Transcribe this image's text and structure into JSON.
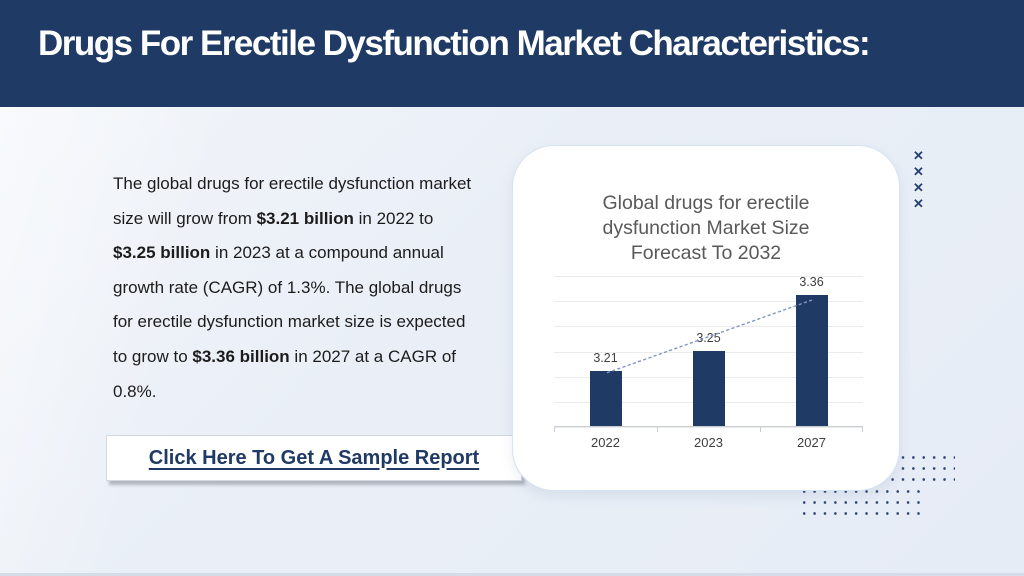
{
  "header": {
    "title": "Drugs For Erectile Dysfunction Market Characteristics:"
  },
  "intro": {
    "segments": [
      {
        "text": "The global drugs for erectile dysfunction market size will grow from ",
        "bold": false
      },
      {
        "text": "$3.21 billion",
        "bold": true
      },
      {
        "text": " in 2022 to ",
        "bold": false
      },
      {
        "text": "$3.25 billion",
        "bold": true
      },
      {
        "text": " in 2023 at a compound annual growth rate (CAGR) of 1.3%. The global drugs for erectile dysfunction market size is expected to grow to ",
        "bold": false
      },
      {
        "text": "$3.36 billion",
        "bold": true
      },
      {
        "text": " in 2027 at a CAGR of 0.8%.",
        "bold": false
      }
    ]
  },
  "cta": {
    "label": "Click Here To Get A Sample Report"
  },
  "chart_data": {
    "type": "bar",
    "title": "Global drugs for erectile dysfunction Market Size Forecast To 2032",
    "title_lines": [
      "Global drugs for erectile",
      "dysfunction Market Size",
      "Forecast To 2032"
    ],
    "categories": [
      "2022",
      "2023",
      "2027"
    ],
    "values": [
      3.21,
      3.25,
      3.36
    ],
    "value_labels": [
      "3.21",
      "3.25",
      "3.36"
    ],
    "ylim": [
      3.1,
      3.4
    ],
    "grid": true,
    "gridline_count": 7,
    "bar_color": "#1f3a64",
    "trendline": {
      "style": "dotted",
      "color": "#8295c7",
      "from_value": 3.21,
      "to_value": 3.36
    },
    "legend": "none"
  },
  "decor": {
    "x_symbol": "✕",
    "x_count": 4
  },
  "colors": {
    "header_bg": "#1f3a64",
    "accent_navy": "#1f3a64",
    "chart_title_gray": "#595959",
    "dot_navy": "#2a4570",
    "background": "#eaeff7"
  }
}
